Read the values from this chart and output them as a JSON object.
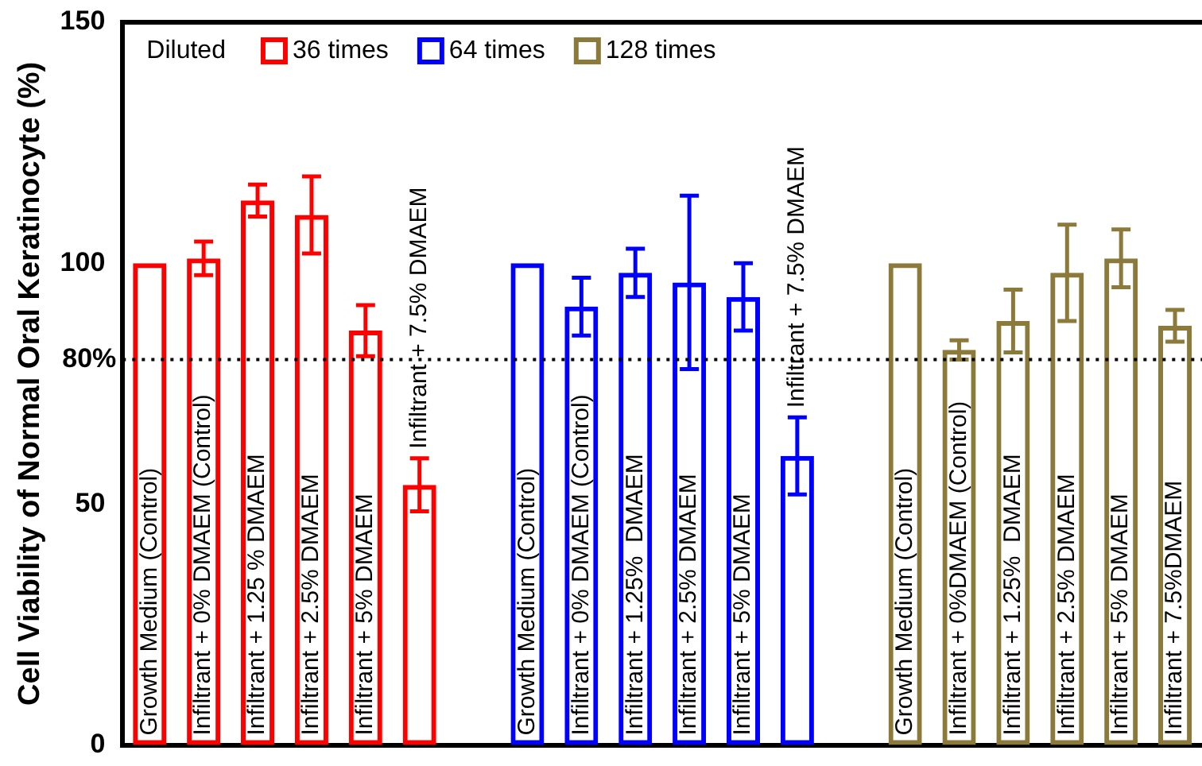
{
  "chart_data": {
    "type": "bar",
    "ylabel": "Cell Viability of Normal Oral Keratinocyte (%)",
    "legend_title": "Diluted",
    "legend": "top left",
    "categories": [
      "Growth Medium (Control)",
      "Infiltrant + 0% DMAEM (Control)",
      "Infiltrant + 1.25 % DMAEM",
      "Infiltrant + 2.5% DMAEM",
      "Infiltrant + 5% DMAEM",
      "Infiltrant + 7.5% DMAEM",
      null,
      "Growth Medium (Control)",
      "Infiltrant + 0% DMAEM (Control)",
      "Infiltrant + 1.25%  DMAEM",
      "Infiltrant + 2.5% DMAEM",
      "Infiltrant + 5% DMAEM",
      "Infiltrant + 7.5% DMAEM",
      null,
      "Growth Medium (Control)",
      "Infiltrant + 0%DMAEM (Control)",
      "Infiltrant + 1.25%  DMAEM",
      "Infiltrant + 2.5% DMAEM",
      "Infiltrant + 5% DMAEM",
      "Infiltrant + 7.5%DMAEM"
    ],
    "series": [
      {
        "name": "36 times",
        "color": "#ff0000",
        "values": [
          100,
          101,
          113,
          110,
          86,
          54,
          null,
          null,
          null,
          null,
          null,
          null,
          null,
          null,
          null,
          null,
          null,
          null,
          null,
          null
        ],
        "errors": [
          null,
          3.5,
          3.3,
          8,
          5.3,
          5.5,
          null,
          null,
          null,
          null,
          null,
          null,
          null,
          null,
          null,
          null,
          null,
          null,
          null,
          null
        ]
      },
      {
        "name": "64 times",
        "color": "#0000ff",
        "values": [
          null,
          null,
          null,
          null,
          null,
          null,
          null,
          100,
          91,
          98,
          96,
          93,
          60,
          null,
          null,
          null,
          null,
          null,
          null,
          null
        ],
        "errors": [
          null,
          null,
          null,
          null,
          null,
          null,
          null,
          null,
          6,
          5,
          18,
          7,
          8,
          null,
          null,
          null,
          null,
          null,
          null,
          null
        ]
      },
      {
        "name": "128 times",
        "color": "#8b7a3a",
        "values": [
          null,
          null,
          null,
          null,
          null,
          null,
          null,
          null,
          null,
          null,
          null,
          null,
          null,
          null,
          100,
          82,
          88,
          98,
          101,
          87
        ],
        "errors": [
          null,
          null,
          null,
          null,
          null,
          null,
          null,
          null,
          null,
          null,
          null,
          null,
          null,
          null,
          null,
          2,
          6.5,
          10,
          6,
          3.3
        ]
      }
    ],
    "ylim": [
      0,
      150
    ],
    "yticks": [
      0,
      50,
      100,
      150
    ],
    "ref_lines": [
      {
        "axis": "y",
        "value": 80,
        "label": "80%",
        "line_style": "dotted",
        "color": "#000000"
      }
    ]
  }
}
